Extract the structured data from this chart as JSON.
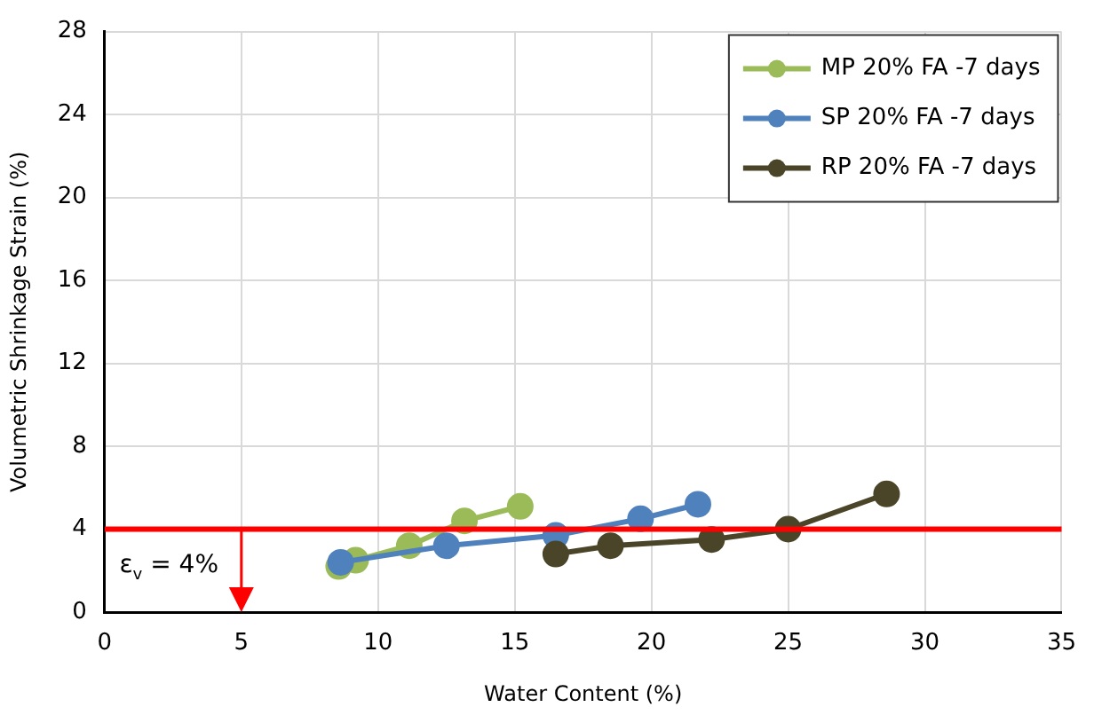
{
  "chart_data": {
    "type": "line",
    "xlabel": "Water Content (%)",
    "ylabel": "Volumetric Shrinkage Strain (%)",
    "xlim": [
      0,
      35
    ],
    "xticks": [
      0,
      5,
      10,
      15,
      20,
      25,
      30,
      35
    ],
    "ylim": [
      0,
      28
    ],
    "yticks": [
      0,
      4,
      8,
      12,
      16,
      20,
      24,
      28
    ],
    "grid": true,
    "legend": "top right",
    "marker": "circle",
    "series": [
      {
        "name": "MP 20% FA -7 days",
        "color": "#9bbb59",
        "x": [
          8.56,
          9.18,
          11.14,
          13.16,
          15.2
        ],
        "values": [
          2.2,
          2.5,
          3.2,
          4.4,
          5.1
        ]
      },
      {
        "name": "SP 20% FA -7 days",
        "color": "#4f81bd",
        "x": [
          8.63,
          12.5,
          16.5,
          19.6,
          21.7
        ],
        "values": [
          2.4,
          3.2,
          3.7,
          4.5,
          5.2
        ]
      },
      {
        "name": "RP 20% FA -7 days",
        "color": "#4a4529",
        "x": [
          16.5,
          18.5,
          22.2,
          25.0,
          28.6
        ],
        "values": [
          2.8,
          3.2,
          3.5,
          4.0,
          5.7
        ]
      }
    ],
    "ref_lines": [
      {
        "axis": "y",
        "value": 4,
        "color": "#ff0000"
      }
    ],
    "annotations": [
      {
        "text": "ε$_{v}$ = 4%",
        "x": 5,
        "y": 4
      }
    ]
  }
}
